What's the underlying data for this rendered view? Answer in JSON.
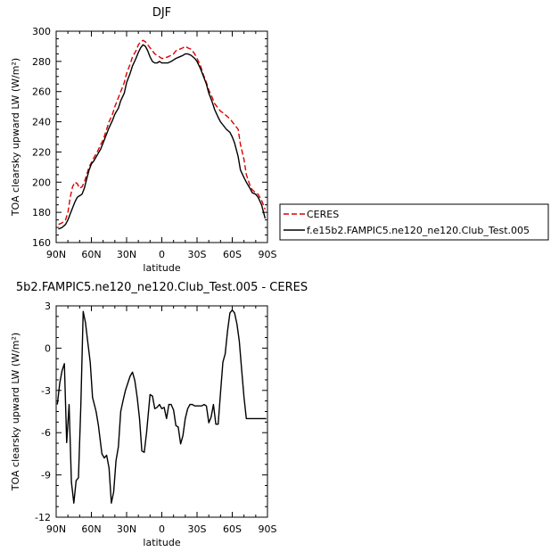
{
  "chart_data": [
    {
      "type": "line",
      "title": "DJF",
      "xlabel": "latitude",
      "ylabel": "TOA clearsky upward LW (W/m²)",
      "xlim": [
        90,
        -90
      ],
      "ylim": [
        160,
        300
      ],
      "x_ticks": [
        {
          "value": 90,
          "label": "90N"
        },
        {
          "value": 60,
          "label": "60N"
        },
        {
          "value": 30,
          "label": "30N"
        },
        {
          "value": 0,
          "label": "0"
        },
        {
          "value": -30,
          "label": "30S"
        },
        {
          "value": -60,
          "label": "60S"
        },
        {
          "value": -90,
          "label": "90S"
        }
      ],
      "y_ticks": [
        160,
        180,
        200,
        220,
        240,
        260,
        280,
        300
      ],
      "legend_position": "right",
      "series": [
        {
          "name": "CERES",
          "color": "#dd0000",
          "style": "dashed",
          "x": [
            88,
            85,
            82,
            80,
            78,
            76,
            74,
            72,
            70,
            68,
            66,
            64,
            62,
            60,
            58,
            55,
            52,
            50,
            47,
            45,
            42,
            40,
            37,
            35,
            32,
            30,
            27,
            25,
            22,
            20,
            18,
            16,
            14,
            12,
            10,
            8,
            6,
            4,
            2,
            0,
            -2,
            -5,
            -8,
            -10,
            -12,
            -15,
            -18,
            -20,
            -22,
            -25,
            -28,
            -30,
            -33,
            -35,
            -38,
            -40,
            -43,
            -45,
            -48,
            -50,
            -52,
            -55,
            -58,
            -60,
            -62,
            -65,
            -67,
            -70,
            -72,
            -75,
            -77,
            -80,
            -82,
            -85,
            -88
          ],
          "y": [
            172,
            173,
            175,
            180,
            190,
            197,
            200,
            199,
            196,
            197,
            200,
            205,
            210,
            213,
            216,
            220,
            225,
            228,
            235,
            240,
            245,
            250,
            256,
            260,
            266,
            272,
            278,
            283,
            287,
            291,
            293,
            294,
            293,
            291,
            289,
            287,
            285,
            284,
            283,
            282,
            282,
            283,
            284,
            285,
            287,
            288,
            289,
            290,
            289,
            288,
            285,
            282,
            277,
            272,
            266,
            261,
            256,
            252,
            249,
            247,
            246,
            244,
            242,
            240,
            238,
            235,
            225,
            215,
            205,
            198,
            195,
            193,
            192,
            188,
            182
          ]
        },
        {
          "name": "f.e15b2.FAMPIC5.ne120_ne120.Club_Test.005",
          "color": "#000000",
          "style": "solid",
          "x": [
            88,
            85,
            82,
            80,
            78,
            76,
            74,
            72,
            70,
            68,
            66,
            64,
            62,
            60,
            58,
            55,
            52,
            50,
            47,
            45,
            42,
            40,
            37,
            35,
            32,
            30,
            27,
            25,
            22,
            20,
            18,
            16,
            14,
            12,
            10,
            8,
            6,
            4,
            2,
            0,
            -2,
            -5,
            -8,
            -10,
            -12,
            -15,
            -18,
            -20,
            -22,
            -25,
            -28,
            -30,
            -33,
            -35,
            -38,
            -40,
            -43,
            -45,
            -48,
            -50,
            -52,
            -55,
            -58,
            -60,
            -62,
            -65,
            -67,
            -70,
            -72,
            -75,
            -77,
            -80,
            -82,
            -85,
            -88
          ],
          "y": [
            169,
            170,
            172,
            175,
            179,
            183,
            187,
            190,
            191,
            192,
            196,
            202,
            208,
            212,
            214,
            218,
            222,
            226,
            232,
            236,
            241,
            245,
            249,
            254,
            259,
            266,
            272,
            277,
            282,
            286,
            289,
            291,
            290,
            287,
            283,
            280,
            279,
            279,
            280,
            279,
            279,
            279,
            280,
            281,
            282,
            283,
            284,
            285,
            285,
            284,
            282,
            280,
            275,
            271,
            265,
            259,
            253,
            248,
            243,
            240,
            238,
            235,
            233,
            230,
            226,
            217,
            208,
            203,
            200,
            196,
            193,
            192,
            190,
            185,
            176
          ]
        }
      ]
    },
    {
      "type": "line",
      "title": "5b2.FAMPIC5.ne120_ne120.Club_Test.005 - CERES",
      "xlabel": "latitude",
      "ylabel": "TOA clearsky upward LW (W/m²)",
      "xlim": [
        90,
        -90
      ],
      "ylim": [
        -12,
        3
      ],
      "x_ticks": [
        {
          "value": 90,
          "label": "90N"
        },
        {
          "value": 60,
          "label": "60N"
        },
        {
          "value": 30,
          "label": "30N"
        },
        {
          "value": 0,
          "label": "0"
        },
        {
          "value": -30,
          "label": "30S"
        },
        {
          "value": -60,
          "label": "60S"
        },
        {
          "value": -90,
          "label": "90S"
        }
      ],
      "y_ticks": [
        -12,
        -9,
        -6,
        -3,
        0,
        3
      ],
      "series": [
        {
          "name": "",
          "color": "#000000",
          "style": "solid",
          "x": [
            89,
            87,
            85,
            83,
            81,
            79,
            77,
            75,
            73,
            71,
            69,
            67,
            65,
            63,
            61,
            59,
            56,
            54,
            51,
            49,
            47,
            45,
            43,
            41,
            39,
            37,
            35,
            33,
            31,
            29,
            27,
            25,
            23,
            21,
            19,
            17,
            15,
            13,
            10,
            8,
            6,
            4,
            2,
            0,
            -2,
            -4,
            -6,
            -8,
            -10,
            -12,
            -14,
            -16,
            -18,
            -20,
            -22,
            -24,
            -26,
            -28,
            -30,
            -32,
            -34,
            -36,
            -38,
            -40,
            -42,
            -44,
            -46,
            -48,
            -50,
            -52,
            -54,
            -56,
            -58,
            -60,
            -62,
            -64,
            -66,
            -68,
            -70,
            -72,
            -74,
            -76,
            -78,
            -80,
            -82,
            -84,
            -86,
            -88,
            -89
          ],
          "y": [
            -4.0,
            -2.5,
            -1.6,
            -1.1,
            -6.7,
            -4.0,
            -9.5,
            -11.0,
            -9.4,
            -9.2,
            -4.0,
            2.6,
            1.8,
            0.4,
            -1.0,
            -3.5,
            -4.5,
            -5.5,
            -7.5,
            -7.8,
            -7.6,
            -8.5,
            -11.0,
            -10.2,
            -8.0,
            -7.0,
            -4.5,
            -3.7,
            -3.0,
            -2.5,
            -2.0,
            -1.7,
            -2.3,
            -3.5,
            -5.0,
            -7.3,
            -7.4,
            -6.0,
            -3.3,
            -3.4,
            -4.3,
            -4.2,
            -4.0,
            -4.3,
            -4.2,
            -5.0,
            -4.0,
            -4.0,
            -4.4,
            -5.5,
            -5.6,
            -6.8,
            -6.2,
            -5.0,
            -4.3,
            -4.0,
            -4.0,
            -4.1,
            -4.1,
            -4.1,
            -4.1,
            -4.0,
            -4.1,
            -5.3,
            -4.9,
            -4.0,
            -5.4,
            -5.4,
            -3.2,
            -1.0,
            -0.4,
            1.2,
            2.5,
            2.7,
            2.5,
            1.7,
            0.5,
            -1.5,
            -3.5,
            -5.0,
            -5.0,
            -5.0,
            -5.0,
            -5.0,
            -5.0,
            -5.0,
            -5.0,
            -5.0,
            -5.0
          ]
        }
      ]
    }
  ]
}
